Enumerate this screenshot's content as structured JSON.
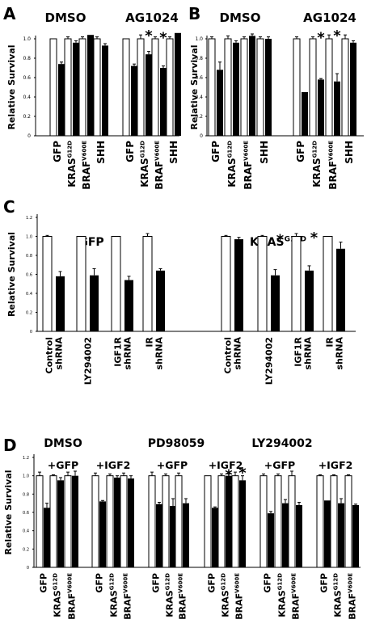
{
  "chart_data": [
    {
      "panel": "A",
      "type": "bar",
      "ylabel": "Relative Survival",
      "ylim": [
        0,
        1.0
      ],
      "yticks": [
        "0",
        "0.2",
        "0.4",
        "0.6",
        "0.8",
        "1.0"
      ],
      "legend": "none",
      "groups": [
        {
          "title": "DMSO",
          "categories": [
            {
              "label": "GFP",
              "sup": "",
              "values": [
                1.0,
                0.74
              ],
              "err": [
                0.0,
                0.02
              ],
              "star": false
            },
            {
              "label": "KRAS",
              "sup": "G12D",
              "values": [
                1.0,
                0.96
              ],
              "err": [
                0.02,
                0.02
              ],
              "star": false
            },
            {
              "label": "BRAF",
              "sup": "V600E",
              "values": [
                1.0,
                1.04
              ],
              "err": [
                0.02,
                0.0
              ],
              "star": false
            },
            {
              "label": "SHH",
              "sup": "",
              "values": [
                1.0,
                0.93
              ],
              "err": [
                0.02,
                0.02
              ],
              "star": false
            }
          ]
        },
        {
          "title": "AG1024",
          "categories": [
            {
              "label": "GFP",
              "sup": "",
              "values": [
                1.0,
                0.72
              ],
              "err": [
                0.0,
                0.02
              ],
              "star": false
            },
            {
              "label": "KRAS",
              "sup": "G12D",
              "values": [
                1.0,
                0.84
              ],
              "err": [
                0.04,
                0.03
              ],
              "star": true
            },
            {
              "label": "BRAF",
              "sup": "V600E",
              "values": [
                1.0,
                0.7
              ],
              "err": [
                0.02,
                0.02
              ],
              "star": true
            },
            {
              "label": "SHH",
              "sup": "",
              "values": [
                1.0,
                1.06
              ],
              "err": [
                0.02,
                0.0
              ],
              "star": false
            }
          ]
        }
      ]
    },
    {
      "panel": "B",
      "type": "bar",
      "ylabel": "Relative Survival",
      "ylim": [
        0,
        1.0
      ],
      "yticks": [
        "0",
        "0.2",
        "0.4",
        "0.6",
        "0.8",
        "1.0"
      ],
      "legend": "none",
      "groups": [
        {
          "title": "DMSO",
          "categories": [
            {
              "label": "GFP",
              "sup": "",
              "values": [
                1.0,
                0.68
              ],
              "err": [
                0.02,
                0.08
              ],
              "star": false
            },
            {
              "label": "KRAS",
              "sup": "G12D",
              "values": [
                1.0,
                0.96
              ],
              "err": [
                0.03,
                0.02
              ],
              "star": false
            },
            {
              "label": "BRAF",
              "sup": "V600E",
              "values": [
                1.0,
                1.03
              ],
              "err": [
                0.02,
                0.02
              ],
              "star": false
            },
            {
              "label": "SHH",
              "sup": "",
              "values": [
                1.0,
                1.0
              ],
              "err": [
                0.02,
                0.02
              ],
              "star": false
            }
          ]
        },
        {
          "title": "AG1024",
          "categories": [
            {
              "label": "GFP",
              "sup": "",
              "values": [
                1.0,
                0.45
              ],
              "err": [
                0.02,
                0.0
              ],
              "star": false
            },
            {
              "label": "KRAS",
              "sup": "G12D",
              "values": [
                1.0,
                0.58
              ],
              "err": [
                0.02,
                0.01
              ],
              "star": true
            },
            {
              "label": "BRAF",
              "sup": "V600E",
              "values": [
                1.0,
                0.56
              ],
              "err": [
                0.04,
                0.08
              ],
              "star": true
            },
            {
              "label": "SHH",
              "sup": "",
              "values": [
                1.0,
                0.96
              ],
              "err": [
                0.04,
                0.02
              ],
              "star": false
            }
          ]
        }
      ]
    },
    {
      "panel": "C",
      "type": "bar",
      "ylabel": "Relative Survival",
      "ylim": [
        0,
        1.2
      ],
      "yticks": [
        "0",
        "0.2",
        "0.4",
        "0.6",
        "0.8",
        "1.0",
        "1.2"
      ],
      "legend": "none",
      "groups": [
        {
          "title": "GFP",
          "titleSup": "",
          "categories": [
            {
              "label": "Control",
              "label2": "shRNA",
              "values": [
                1.0,
                0.58
              ],
              "err": [
                0.01,
                0.05
              ],
              "star": false
            },
            {
              "label": "LY294002",
              "label2": "",
              "values": [
                1.0,
                0.59
              ],
              "err": [
                0.0,
                0.07
              ],
              "star": false
            },
            {
              "label": "IGF1R",
              "label2": "shRNA",
              "values": [
                1.0,
                0.54
              ],
              "err": [
                0.0,
                0.04
              ],
              "star": false
            },
            {
              "label": "IR",
              "label2": "shRNA",
              "values": [
                1.0,
                0.64
              ],
              "err": [
                0.03,
                0.02
              ],
              "star": false
            }
          ]
        },
        {
          "title": "KRAS",
          "titleSup": "G12D",
          "categories": [
            {
              "label": "Control",
              "label2": "shRNA",
              "values": [
                1.0,
                0.97
              ],
              "err": [
                0.01,
                0.02
              ],
              "star": false
            },
            {
              "label": "LY294002",
              "label2": "",
              "values": [
                1.0,
                0.59
              ],
              "err": [
                0.01,
                0.06
              ],
              "star": true
            },
            {
              "label": "IGF1R",
              "label2": "shRNA",
              "values": [
                1.0,
                0.64
              ],
              "err": [
                0.03,
                0.05
              ],
              "star": true
            },
            {
              "label": "IR",
              "label2": "shRNA",
              "values": [
                1.0,
                0.87
              ],
              "err": [
                0.0,
                0.07
              ],
              "star": false
            }
          ]
        }
      ]
    },
    {
      "panel": "D",
      "type": "bar",
      "ylabel": "Relative Survival",
      "ylim": [
        0,
        1.2
      ],
      "yticks": [
        "0",
        "0.2",
        "0.4",
        "0.6",
        "0.8",
        "1.0",
        "1.2"
      ],
      "legend": "none",
      "treatments": [
        "DMSO",
        "PD98059",
        "LY294002"
      ],
      "groups": [
        {
          "title": "+GFP",
          "categories": [
            {
              "label": "GFP",
              "sup": "",
              "values": [
                1.0,
                0.65
              ],
              "err": [
                0.04,
                0.05
              ],
              "star": false
            },
            {
              "label": "KRAS",
              "sup": "G12D",
              "values": [
                1.0,
                0.95
              ],
              "err": [
                0.01,
                0.03
              ],
              "star": false
            },
            {
              "label": "BRAF",
              "sup": "V600E",
              "values": [
                1.0,
                1.0
              ],
              "err": [
                0.04,
                0.05
              ],
              "star": false
            }
          ]
        },
        {
          "title": "+IGF2",
          "categories": [
            {
              "label": "GFP",
              "sup": "",
              "values": [
                1.0,
                0.72
              ],
              "err": [
                0.03,
                0.01
              ],
              "star": false
            },
            {
              "label": "KRAS",
              "sup": "G12D",
              "values": [
                1.0,
                0.98
              ],
              "err": [
                0.02,
                0.02
              ],
              "star": false
            },
            {
              "label": "BRAF",
              "sup": "V600E",
              "values": [
                1.0,
                0.97
              ],
              "err": [
                0.03,
                0.03
              ],
              "star": false
            }
          ]
        },
        {
          "title": "+GFP",
          "categories": [
            {
              "label": "GFP",
              "sup": "",
              "values": [
                1.0,
                0.69
              ],
              "err": [
                0.04,
                0.02
              ],
              "star": false
            },
            {
              "label": "KRAS",
              "sup": "G12D",
              "values": [
                1.0,
                0.67
              ],
              "err": [
                0.02,
                0.08
              ],
              "star": false
            },
            {
              "label": "BRAF",
              "sup": "V600E",
              "values": [
                1.0,
                0.7
              ],
              "err": [
                0.03,
                0.05
              ],
              "star": false
            }
          ]
        },
        {
          "title": "+IGF2",
          "categories": [
            {
              "label": "GFP",
              "sup": "",
              "values": [
                1.0,
                0.65
              ],
              "err": [
                0.0,
                0.01
              ],
              "star": false
            },
            {
              "label": "KRAS",
              "sup": "G12D",
              "values": [
                1.0,
                1.0
              ],
              "err": [
                0.02,
                0.02
              ],
              "star": true
            },
            {
              "label": "BRAF",
              "sup": "V600E",
              "values": [
                1.0,
                0.95
              ],
              "err": [
                0.04,
                0.05
              ],
              "star": true
            }
          ]
        },
        {
          "title": "+GFP",
          "categories": [
            {
              "label": "GFP",
              "sup": "",
              "values": [
                1.0,
                0.59
              ],
              "err": [
                0.02,
                0.02
              ],
              "star": false
            },
            {
              "label": "KRAS",
              "sup": "G12D",
              "values": [
                1.0,
                0.7
              ],
              "err": [
                0.02,
                0.04
              ],
              "star": false
            },
            {
              "label": "BRAF",
              "sup": "V600E",
              "values": [
                1.0,
                0.68
              ],
              "err": [
                0.05,
                0.03
              ],
              "star": false
            }
          ]
        },
        {
          "title": "+IGF2",
          "categories": [
            {
              "label": "GFP",
              "sup": "",
              "values": [
                1.0,
                0.73
              ],
              "err": [
                0.01,
                0.0
              ],
              "star": false
            },
            {
              "label": "KRAS",
              "sup": "G12D",
              "values": [
                1.0,
                0.7
              ],
              "err": [
                0.01,
                0.05
              ],
              "star": false
            },
            {
              "label": "BRAF",
              "sup": "V600E",
              "values": [
                1.0,
                0.68
              ],
              "err": [
                0.01,
                0.01
              ],
              "star": false
            }
          ]
        }
      ]
    }
  ]
}
